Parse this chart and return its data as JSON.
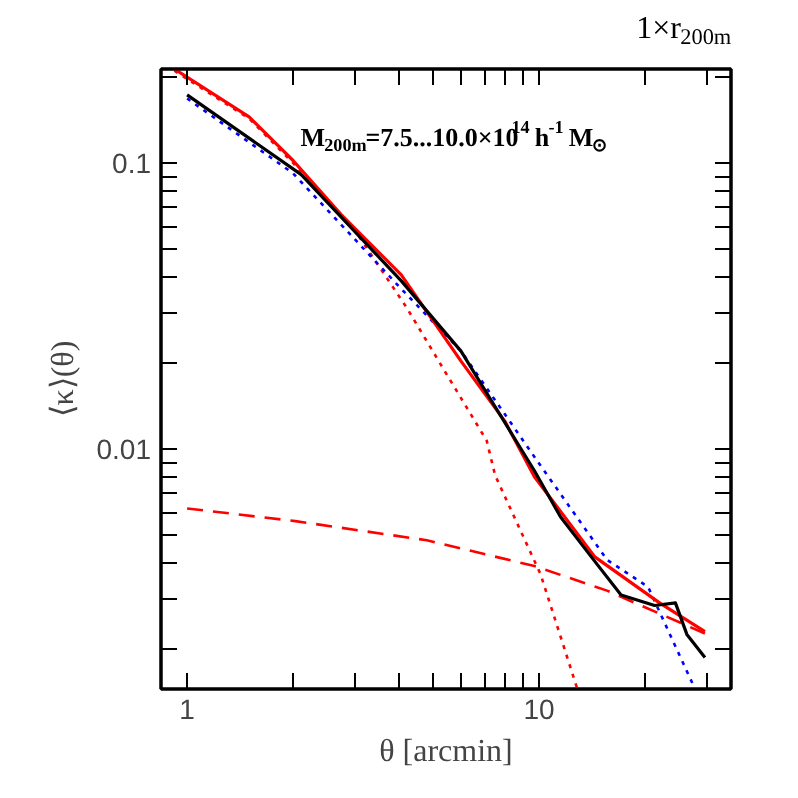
{
  "chart_data": {
    "type": "line",
    "title": "1×r$_{200m}$",
    "xlabel": "θ [arcmin]",
    "ylabel": "⟨κ⟩(θ)",
    "annotations": [
      "M$_{200m}$=7.5...10.0×10$^{14}$ h$^{-1}$ M$_{⊙}$"
    ],
    "log": "xy",
    "grid": false,
    "xlim": [
      0.843,
      35.1
    ],
    "ylim": [
      0.00145,
      0.213
    ],
    "xticks": [
      1,
      {
        "value": 2,
        "label": null
      },
      {
        "value": 3,
        "label": null
      },
      {
        "value": 4,
        "label": null
      },
      {
        "value": 5,
        "label": null
      },
      {
        "value": 6,
        "label": null
      },
      {
        "value": 7,
        "label": null
      },
      {
        "value": 8,
        "label": null
      },
      {
        "value": 9,
        "label": null
      },
      10,
      {
        "value": 20,
        "label": null
      },
      {
        "value": 30,
        "label": null
      }
    ],
    "yticks": [
      {
        "value": 0.002,
        "label": null
      },
      {
        "value": 0.003,
        "label": null
      },
      {
        "value": 0.004,
        "label": null
      },
      {
        "value": 0.005,
        "label": null
      },
      {
        "value": 0.006,
        "label": null
      },
      {
        "value": 0.007,
        "label": null
      },
      {
        "value": 0.008,
        "label": null
      },
      {
        "value": 0.009,
        "label": null
      },
      0.01,
      {
        "value": 0.02,
        "label": null
      },
      {
        "value": 0.03,
        "label": null
      },
      {
        "value": 0.04,
        "label": null
      },
      {
        "value": 0.05,
        "label": null
      },
      {
        "value": 0.06,
        "label": null
      },
      {
        "value": 0.07,
        "label": null
      },
      {
        "value": 0.08,
        "label": null
      },
      {
        "value": 0.09,
        "label": null
      },
      0.1,
      {
        "value": 0.2,
        "label": null
      }
    ],
    "series": [
      {
        "color": "#ff0000",
        "line_style": "dotted",
        "x": [
          0.92,
          1.5,
          2,
          3,
          4.2,
          5.5,
          7.1,
          7.5,
          10.1,
          12.8
        ],
        "values": [
          0.21,
          0.143,
          0.1,
          0.058,
          0.0313,
          0.018,
          0.0107,
          0.0081,
          0.00365,
          0.00147
        ]
      },
      {
        "color": "#ff0000",
        "line_style": "dashed",
        "x": [
          1,
          2.03,
          4.8,
          9.7,
          15.6,
          30
        ],
        "values": [
          0.0062,
          0.0056,
          0.0048,
          0.0039,
          0.0032,
          0.00225
        ]
      },
      {
        "color": "#0000ff",
        "line_style": "dotted",
        "x": [
          1,
          2,
          4,
          6,
          10,
          15.6,
          20.4,
          27.6
        ],
        "values": [
          0.168,
          0.092,
          0.037,
          0.022,
          0.0089,
          0.0041,
          0.0033,
          0.00147
        ]
      },
      {
        "color": "#ff0000",
        "line_style": "solid",
        "x": [
          0.92,
          1.5,
          2,
          2.74,
          4.06,
          6,
          8,
          9.7,
          14.4,
          22,
          29.6
        ],
        "values": [
          0.213,
          0.145,
          0.102,
          0.066,
          0.0406,
          0.0203,
          0.0125,
          0.008,
          0.0042,
          0.0029,
          0.0023
        ]
      },
      {
        "color": "#000000",
        "line_style": "solid",
        "x": [
          1,
          2.11,
          4.06,
          6,
          9.7,
          11.5,
          14.4,
          17.1,
          21.3,
          24.4,
          26.3,
          29.6
        ],
        "values": [
          0.173,
          0.091,
          0.0387,
          0.022,
          0.0084,
          0.0058,
          0.00405,
          0.00309,
          0.00284,
          0.0029,
          0.00225,
          0.00187
        ]
      }
    ]
  }
}
